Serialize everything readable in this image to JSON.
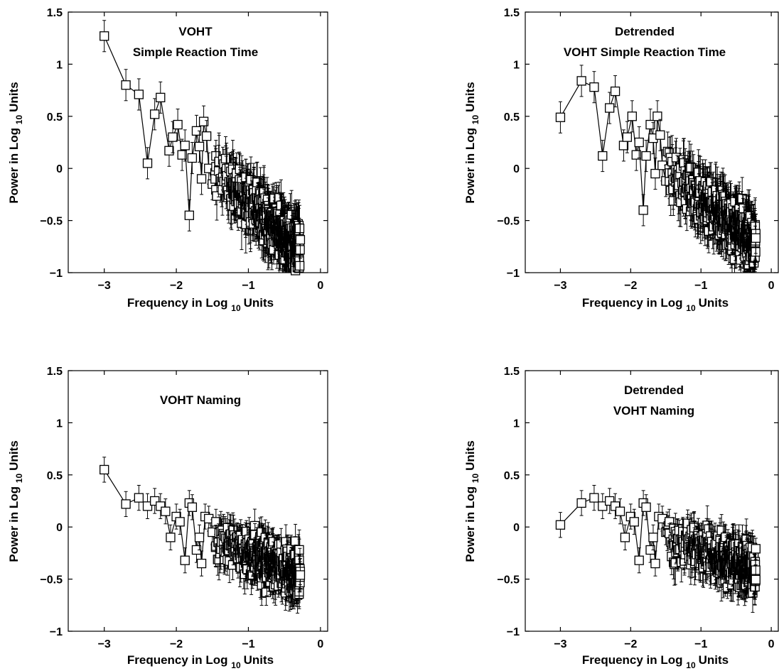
{
  "chart_data": [
    {
      "type": "scatter",
      "title_lines": [
        "VOHT",
        "Simple Reaction Time"
      ],
      "xlabel_main": "Frequency in Log",
      "xlabel_sub": "10",
      "xlabel_tail": "Units",
      "ylabel_main": "Power in Log",
      "ylabel_sub": "10",
      "ylabel_tail": "Units",
      "xlim": [
        -3.5,
        0.1
      ],
      "ylim": [
        -1,
        1.5
      ],
      "xticks": [
        -3,
        -2,
        -1,
        0
      ],
      "xtick_labels": [
        "−3",
        "−2",
        "−1",
        "0"
      ],
      "yticks": [
        -1,
        -0.5,
        0,
        0.5,
        1,
        1.5
      ],
      "ytick_labels": [
        "−1",
        "−0.5",
        "0",
        "0.5",
        "1",
        "1.5"
      ],
      "grid": false,
      "points": [
        [
          -3.0,
          1.27
        ],
        [
          -2.7,
          0.8
        ],
        [
          -2.52,
          0.71
        ],
        [
          -2.4,
          0.05
        ],
        [
          -2.3,
          0.52
        ],
        [
          -2.22,
          0.68
        ],
        [
          -2.1,
          0.17
        ],
        [
          -2.05,
          0.3
        ],
        [
          -1.98,
          0.42
        ],
        [
          -1.92,
          0.13
        ],
        [
          -1.88,
          0.22
        ],
        [
          -1.82,
          -0.45
        ],
        [
          -1.78,
          0.1
        ],
        [
          -1.72,
          0.36
        ],
        [
          -1.68,
          0.21
        ],
        [
          -1.65,
          -0.1
        ],
        [
          -1.62,
          0.45
        ],
        [
          -1.58,
          0.31
        ],
        [
          -1.55,
          0.0
        ],
        [
          -1.5,
          -0.15
        ],
        [
          -1.45,
          0.12
        ]
      ],
      "point_error": 0.15,
      "cloud": {
        "x_range": [
          -1.5,
          -0.28
        ],
        "center_start": 0.0,
        "center_end": -0.78,
        "spread": 0.3,
        "count": 650,
        "error": 0.2
      }
    },
    {
      "type": "scatter",
      "title_lines": [
        "Detrended",
        "VOHT Simple Reaction Time"
      ],
      "xlabel_main": "Frequency in Log",
      "xlabel_sub": "10",
      "xlabel_tail": "Units",
      "ylabel_main": "Power in Log",
      "ylabel_sub": "10",
      "ylabel_tail": "Units",
      "xlim": [
        -3.5,
        0.1
      ],
      "ylim": [
        -1,
        1.5
      ],
      "xticks": [
        -3,
        -2,
        -1,
        0
      ],
      "xtick_labels": [
        "−3",
        "−2",
        "−1",
        "0"
      ],
      "yticks": [
        -1,
        -0.5,
        0,
        0.5,
        1,
        1.5
      ],
      "ytick_labels": [
        "−1",
        "−0.5",
        "0",
        "0.5",
        "1",
        "1.5"
      ],
      "grid": false,
      "points": [
        [
          -3.0,
          0.49
        ],
        [
          -2.7,
          0.84
        ],
        [
          -2.52,
          0.78
        ],
        [
          -2.4,
          0.12
        ],
        [
          -2.3,
          0.58
        ],
        [
          -2.22,
          0.74
        ],
        [
          -2.1,
          0.22
        ],
        [
          -2.05,
          0.3
        ],
        [
          -1.98,
          0.5
        ],
        [
          -1.92,
          0.13
        ],
        [
          -1.88,
          0.25
        ],
        [
          -1.82,
          -0.4
        ],
        [
          -1.78,
          0.12
        ],
        [
          -1.72,
          0.42
        ],
        [
          -1.68,
          0.29
        ],
        [
          -1.65,
          -0.05
        ],
        [
          -1.62,
          0.5
        ],
        [
          -1.58,
          0.32
        ],
        [
          -1.55,
          0.03
        ],
        [
          -1.5,
          -0.12
        ],
        [
          -1.45,
          0.15
        ]
      ],
      "point_error": 0.15,
      "cloud": {
        "x_range": [
          -1.5,
          -0.22
        ],
        "center_start": 0.0,
        "center_end": -0.72,
        "spread": 0.3,
        "count": 650,
        "error": 0.2
      }
    },
    {
      "type": "scatter",
      "title_lines": [
        "VOHT Naming"
      ],
      "xlabel_main": "Frequency in Log",
      "xlabel_sub": "10",
      "xlabel_tail": "Units",
      "ylabel_main": "Power in Log",
      "ylabel_sub": "10",
      "ylabel_tail": "Units",
      "xlim": [
        -3.5,
        0.1
      ],
      "ylim": [
        -1,
        1.5
      ],
      "xticks": [
        -3,
        -2,
        -1,
        0
      ],
      "xtick_labels": [
        "−3",
        "−2",
        "−1",
        "0"
      ],
      "yticks": [
        -1,
        -0.5,
        0,
        0.5,
        1,
        1.5
      ],
      "ytick_labels": [
        "−1",
        "−0.5",
        "0",
        "0.5",
        "1",
        "1.5"
      ],
      "grid": false,
      "points": [
        [
          -3.0,
          0.55
        ],
        [
          -2.7,
          0.22
        ],
        [
          -2.52,
          0.28
        ],
        [
          -2.4,
          0.2
        ],
        [
          -2.3,
          0.25
        ],
        [
          -2.22,
          0.2
        ],
        [
          -2.15,
          0.15
        ],
        [
          -2.08,
          -0.1
        ],
        [
          -2.0,
          0.1
        ],
        [
          -1.95,
          0.05
        ],
        [
          -1.88,
          -0.32
        ],
        [
          -1.82,
          0.23
        ],
        [
          -1.78,
          0.19
        ],
        [
          -1.72,
          -0.22
        ],
        [
          -1.68,
          -0.1
        ],
        [
          -1.65,
          -0.35
        ],
        [
          -1.6,
          0.1
        ],
        [
          -1.55,
          0.08
        ],
        [
          -1.5,
          -0.05
        ],
        [
          -1.45,
          0.05
        ]
      ],
      "point_error": 0.12,
      "cloud": {
        "x_range": [
          -1.5,
          -0.28
        ],
        "center_start": -0.1,
        "center_end": -0.45,
        "spread": 0.28,
        "count": 600,
        "error": 0.15
      }
    },
    {
      "type": "scatter",
      "title_lines": [
        "Detrended",
        "VOHT Naming"
      ],
      "xlabel_main": "Frequency in Log",
      "xlabel_sub": "10",
      "xlabel_tail": "Units",
      "ylabel_main": "Power in Log",
      "ylabel_sub": "10",
      "ylabel_tail": "Units",
      "xlim": [
        -3.5,
        0.1
      ],
      "ylim": [
        -1,
        1.5
      ],
      "xticks": [
        -3,
        -2,
        -1,
        0
      ],
      "xtick_labels": [
        "−3",
        "−2",
        "−1",
        "0"
      ],
      "yticks": [
        -1,
        -0.5,
        0,
        0.5,
        1,
        1.5
      ],
      "ytick_labels": [
        "−1",
        "−0.5",
        "0",
        "0.5",
        "1",
        "1.5"
      ],
      "grid": false,
      "points": [
        [
          -3.0,
          0.02
        ],
        [
          -2.7,
          0.23
        ],
        [
          -2.52,
          0.28
        ],
        [
          -2.4,
          0.2
        ],
        [
          -2.3,
          0.25
        ],
        [
          -2.22,
          0.2
        ],
        [
          -2.15,
          0.15
        ],
        [
          -2.08,
          -0.1
        ],
        [
          -2.0,
          0.1
        ],
        [
          -1.95,
          0.05
        ],
        [
          -1.88,
          -0.32
        ],
        [
          -1.82,
          0.23
        ],
        [
          -1.78,
          0.19
        ],
        [
          -1.72,
          -0.22
        ],
        [
          -1.68,
          -0.1
        ],
        [
          -1.65,
          -0.35
        ],
        [
          -1.6,
          0.1
        ],
        [
          -1.55,
          0.08
        ],
        [
          -1.5,
          -0.05
        ],
        [
          -1.45,
          0.05
        ]
      ],
      "point_error": 0.12,
      "cloud": {
        "x_range": [
          -1.5,
          -0.22
        ],
        "center_start": -0.1,
        "center_end": -0.42,
        "spread": 0.28,
        "count": 600,
        "error": 0.15
      }
    }
  ]
}
